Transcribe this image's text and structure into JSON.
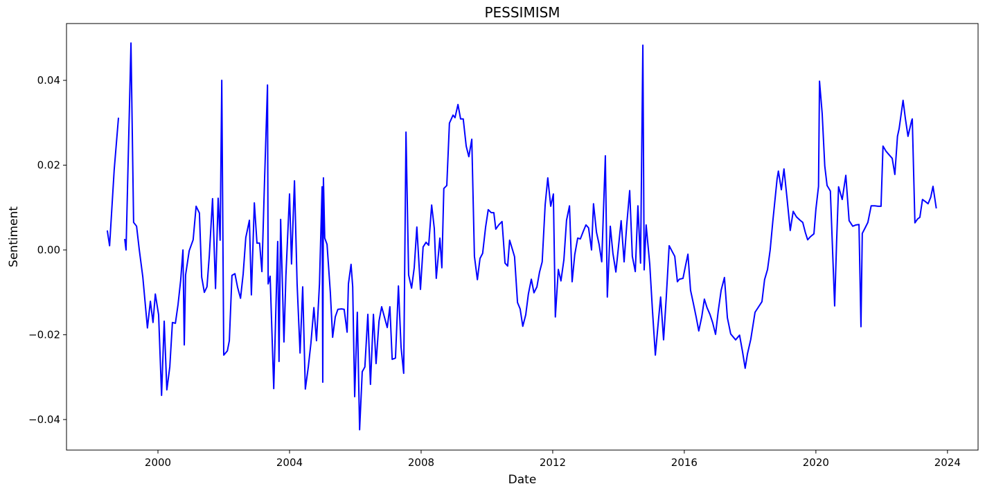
{
  "chart_data": {
    "type": "line",
    "title": "PESSIMISM",
    "x_label": "Date",
    "y_label": "Sentiment",
    "xlim": [
      1997.22,
      2024.93
    ],
    "ylim": [
      -0.0472,
      0.0534
    ],
    "xticks": [
      2000,
      2004,
      2008,
      2012,
      2016,
      2020,
      2024
    ],
    "yticks": [
      {
        "value": -0.04,
        "label": "−0.04"
      },
      {
        "value": -0.02,
        "label": "−0.02"
      },
      {
        "value": 0.0,
        "label": "0.00"
      },
      {
        "value": 0.02,
        "label": "0.02"
      },
      {
        "value": 0.04,
        "label": "0.04"
      }
    ],
    "grid": false,
    "series": [
      {
        "name": "PESSIMISM",
        "color": "#0000ff",
        "x": [
          1998.46,
          1998.53,
          1998.67,
          1998.8,
          1998.9,
          1998.99,
          1999.03,
          1999.18,
          1999.26,
          1999.35,
          1999.43,
          1999.54,
          1999.68,
          1999.77,
          1999.85,
          1999.92,
          2000.02,
          2000.11,
          2000.19,
          2000.27,
          2000.36,
          2000.44,
          2000.53,
          2000.61,
          2000.69,
          2000.76,
          2000.8,
          2000.84,
          2000.95,
          2001.07,
          2001.16,
          2001.26,
          2001.33,
          2001.41,
          2001.49,
          2001.56,
          2001.66,
          2001.75,
          2001.83,
          2001.89,
          2001.94,
          2002.0,
          2002.11,
          2002.17,
          2002.25,
          2002.34,
          2002.42,
          2002.51,
          2002.59,
          2002.67,
          2002.78,
          2002.84,
          2002.93,
          2003.01,
          2003.09,
          2003.16,
          2003.24,
          2003.33,
          2003.35,
          2003.41,
          2003.52,
          2003.64,
          2003.68,
          2003.73,
          2003.83,
          2003.89,
          2004.0,
          2004.06,
          2004.15,
          2004.23,
          2004.32,
          2004.4,
          2004.48,
          2004.57,
          2004.65,
          2004.74,
          2004.82,
          2004.91,
          2004.99,
          2005.01,
          2005.03,
          2005.07,
          2005.14,
          2005.24,
          2005.31,
          2005.39,
          2005.47,
          2005.58,
          2005.66,
          2005.75,
          2005.79,
          2005.87,
          2005.92,
          2005.98,
          2006.06,
          2006.13,
          2006.21,
          2006.29,
          2006.38,
          2006.46,
          2006.55,
          2006.63,
          2006.72,
          2006.8,
          2006.88,
          2006.97,
          2007.05,
          2007.12,
          2007.22,
          2007.31,
          2007.39,
          2007.47,
          2007.54,
          2007.62,
          2007.71,
          2007.79,
          2007.87,
          2007.98,
          2008.06,
          2008.15,
          2008.23,
          2008.32,
          2008.4,
          2008.46,
          2008.57,
          2008.63,
          2008.69,
          2008.78,
          2008.86,
          2008.97,
          2009.03,
          2009.12,
          2009.2,
          2009.28,
          2009.37,
          2009.45,
          2009.54,
          2009.62,
          2009.71,
          2009.79,
          2009.87,
          2009.96,
          2010.04,
          2010.13,
          2010.21,
          2010.27,
          2010.36,
          2010.46,
          2010.55,
          2010.63,
          2010.69,
          2010.78,
          2010.84,
          2010.93,
          2011.01,
          2011.09,
          2011.18,
          2011.26,
          2011.35,
          2011.43,
          2011.52,
          2011.6,
          2011.68,
          2011.77,
          2011.85,
          2011.94,
          2012.02,
          2012.08,
          2012.17,
          2012.25,
          2012.34,
          2012.42,
          2012.51,
          2012.59,
          2012.67,
          2012.76,
          2012.84,
          2012.93,
          2013.01,
          2013.09,
          2013.18,
          2013.24,
          2013.33,
          2013.41,
          2013.49,
          2013.6,
          2013.66,
          2013.75,
          2013.83,
          2013.92,
          2014.0,
          2014.08,
          2014.17,
          2014.25,
          2014.34,
          2014.42,
          2014.51,
          2014.59,
          2014.67,
          2014.74,
          2014.78,
          2014.84,
          2014.95,
          2015.03,
          2015.12,
          2015.2,
          2015.28,
          2015.37,
          2015.45,
          2015.54,
          2015.62,
          2015.71,
          2015.79,
          2015.85,
          2015.96,
          2016.04,
          2016.11,
          2016.19,
          2016.27,
          2016.36,
          2016.44,
          2016.53,
          2016.61,
          2016.69,
          2016.78,
          2016.86,
          2016.95,
          2017.03,
          2017.12,
          2017.22,
          2017.31,
          2017.41,
          2017.56,
          2017.68,
          2017.77,
          2017.85,
          2017.92,
          2018.02,
          2018.15,
          2018.36,
          2018.44,
          2018.53,
          2018.61,
          2018.69,
          2018.82,
          2018.86,
          2018.95,
          2019.03,
          2019.12,
          2019.22,
          2019.31,
          2019.41,
          2019.52,
          2019.6,
          2019.68,
          2019.75,
          2019.83,
          2019.94,
          2020.0,
          2020.08,
          2020.11,
          2020.19,
          2020.27,
          2020.34,
          2020.44,
          2020.57,
          2020.63,
          2020.69,
          2020.8,
          2020.91,
          2021.01,
          2021.12,
          2021.22,
          2021.31,
          2021.37,
          2021.41,
          2021.49,
          2021.58,
          2021.68,
          2021.79,
          2021.89,
          2021.98,
          2022.04,
          2022.13,
          2022.23,
          2022.32,
          2022.4,
          2022.48,
          2022.53,
          2022.65,
          2022.72,
          2022.8,
          2022.91,
          2022.93,
          2023.01,
          2023.09,
          2023.16,
          2023.24,
          2023.33,
          2023.41,
          2023.49,
          2023.56,
          2023.66
        ],
        "values": [
          0.0046,
          0.001,
          0.0189,
          0.0312,
          null,
          0.0026,
          0.0,
          0.0488,
          0.0065,
          0.0056,
          0.0002,
          -0.0064,
          -0.0184,
          -0.0121,
          -0.0171,
          -0.0104,
          -0.0153,
          -0.0343,
          -0.0168,
          -0.033,
          -0.0276,
          -0.0171,
          -0.0173,
          -0.0129,
          -0.0072,
          0.0,
          -0.0224,
          -0.0059,
          -0.0002,
          0.0024,
          0.0103,
          0.0087,
          -0.0064,
          -0.01,
          -0.0087,
          -0.0015,
          0.0121,
          -0.0091,
          0.0122,
          0.0023,
          0.04,
          -0.0248,
          -0.0238,
          -0.0214,
          -0.006,
          -0.0056,
          -0.0088,
          -0.0114,
          -0.0057,
          0.0029,
          0.007,
          -0.0106,
          0.0111,
          0.0016,
          0.0016,
          -0.0051,
          0.0163,
          0.0389,
          -0.008,
          -0.0062,
          -0.0327,
          0.002,
          -0.0263,
          0.0072,
          -0.0217,
          -0.006,
          0.0132,
          -0.0033,
          0.0163,
          -0.008,
          -0.0243,
          -0.0087,
          -0.0328,
          -0.0276,
          -0.022,
          -0.0136,
          -0.0214,
          -0.008,
          0.0149,
          -0.0312,
          0.017,
          0.0028,
          0.0013,
          -0.01,
          -0.0206,
          -0.0158,
          -0.014,
          -0.0139,
          -0.014,
          -0.0194,
          -0.008,
          -0.0034,
          -0.0087,
          -0.0346,
          -0.0147,
          -0.0424,
          -0.0287,
          -0.0276,
          -0.0152,
          -0.0317,
          -0.0152,
          -0.0268,
          -0.0168,
          -0.0134,
          -0.0157,
          -0.0183,
          -0.0134,
          -0.0258,
          -0.0255,
          -0.0085,
          -0.0229,
          -0.0291,
          0.0278,
          -0.0059,
          -0.009,
          -0.0042,
          0.0054,
          -0.0093,
          0.0007,
          0.0018,
          0.0011,
          0.0106,
          0.0051,
          -0.0067,
          0.0028,
          -0.0042,
          0.0145,
          0.0152,
          0.0299,
          0.0318,
          0.0312,
          0.0343,
          0.0309,
          0.0309,
          0.0245,
          0.022,
          0.0261,
          -0.0015,
          -0.007,
          -0.002,
          -0.0008,
          0.0054,
          0.0095,
          0.0088,
          0.0088,
          0.0049,
          0.0059,
          0.0067,
          -0.0031,
          -0.0038,
          0.0023,
          0.0,
          -0.0016,
          -0.0124,
          -0.0139,
          -0.018,
          -0.0153,
          -0.0104,
          -0.0069,
          -0.0101,
          -0.0087,
          -0.0052,
          -0.0028,
          0.0106,
          0.017,
          0.0103,
          0.0132,
          -0.0158,
          -0.0046,
          -0.0073,
          -0.0023,
          0.007,
          0.0104,
          -0.0075,
          -0.0011,
          0.0028,
          0.0026,
          0.0044,
          0.0059,
          0.0052,
          0.0,
          0.0109,
          0.0042,
          0.0013,
          -0.0028,
          0.0222,
          -0.0111,
          0.0056,
          -0.0008,
          -0.0052,
          0.0008,
          0.0069,
          -0.0028,
          0.0059,
          0.014,
          -0.0015,
          -0.0051,
          0.0104,
          -0.0031,
          0.0483,
          -0.0047,
          0.0059,
          -0.0034,
          -0.014,
          -0.0248,
          -0.0178,
          -0.0111,
          -0.0212,
          -0.0114,
          0.001,
          -0.0002,
          -0.0015,
          -0.0075,
          -0.0069,
          -0.0067,
          -0.0036,
          -0.001,
          -0.0095,
          -0.0124,
          -0.0158,
          -0.0191,
          -0.0158,
          -0.0116,
          -0.0136,
          -0.0152,
          -0.0171,
          -0.0199,
          -0.0145,
          -0.0095,
          -0.0065,
          -0.016,
          -0.0198,
          -0.0212,
          -0.0201,
          -0.024,
          -0.0279,
          -0.0245,
          -0.0211,
          -0.0147,
          -0.0122,
          -0.007,
          -0.0046,
          0.0,
          0.0067,
          0.0167,
          0.0186,
          0.0142,
          0.0191,
          0.0124,
          0.0046,
          0.0091,
          0.0078,
          0.007,
          0.0065,
          0.0041,
          0.0024,
          0.0031,
          0.0038,
          0.0096,
          0.015,
          0.0398,
          0.0323,
          0.0198,
          0.0152,
          0.0139,
          -0.0132,
          0.002,
          0.0149,
          0.0119,
          0.0176,
          0.0069,
          0.0056,
          0.0059,
          0.006,
          -0.0181,
          0.0039,
          0.0051,
          0.0065,
          0.0104,
          0.0104,
          0.0103,
          0.0103,
          0.0245,
          0.0233,
          0.0224,
          0.0216,
          0.0178,
          0.0268,
          0.0286,
          0.0353,
          0.031,
          0.0268,
          0.0305,
          0.0309,
          0.0064,
          0.0073,
          0.0077,
          0.0119,
          0.0114,
          0.0109,
          0.0124,
          0.015,
          0.0098
        ]
      }
    ]
  }
}
